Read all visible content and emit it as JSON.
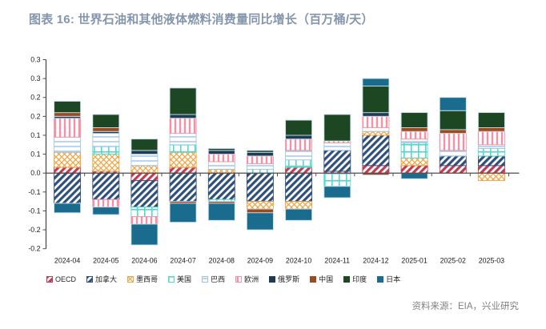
{
  "title": "图表 16: 世界石油和其他液体燃料消费量同比增长（百万桶/天）",
  "source": "资料来源：EIA，兴业研究",
  "chart_data": {
    "type": "bar",
    "stacked": true,
    "title": "图表 16: 世界石油和其他液体燃料消费量同比增长（百万桶/天）",
    "ylabel": "",
    "xlabel": "",
    "unit": "百万桶/天",
    "grid": false,
    "legend_position": "bottom",
    "ylim": [
      -0.2,
      0.3
    ],
    "ytick_step": 0.05,
    "ytick_labels": [
      "0.3",
      "0.3",
      "0.2",
      "0.2",
      "0.1",
      "0.1",
      "0.0",
      "-0.1",
      "-0.1",
      "-0.2",
      "-0.2"
    ],
    "categories": [
      "2024-04",
      "2024-05",
      "2024-06",
      "2024-07",
      "2024-08",
      "2024-09",
      "2024-10",
      "2024-11",
      "2024-12",
      "2025-01",
      "2025-02",
      "2025-03"
    ],
    "series": [
      {
        "name": "OECD",
        "pattern": "diagonal",
        "color": "#c03b50",
        "values": [
          0.015,
          0.005,
          -0.02,
          0.015,
          0,
          0,
          0.015,
          0.005,
          0.02,
          0.02,
          0.02,
          0.02
        ]
      },
      {
        "name": "加拿大",
        "pattern": "diagonal",
        "color": "#2f4f7d",
        "values": [
          -0.08,
          -0.07,
          -0.07,
          -0.075,
          -0.07,
          -0.075,
          -0.075,
          0.055,
          0.08,
          0,
          0.025,
          0.025
        ]
      },
      {
        "name": "墨西哥",
        "pattern": "crosshatch",
        "color": "#f0a23e",
        "values": [
          0.04,
          0.045,
          0.02,
          0.04,
          0.01,
          -0.02,
          -0.02,
          0,
          0.01,
          0.02,
          0,
          -0.02
        ]
      },
      {
        "name": "美国",
        "pattern": "grid",
        "color": "#52d9cd",
        "values": [
          0,
          0.02,
          -0.025,
          0.02,
          -0.005,
          0.01,
          0.02,
          -0.035,
          0,
          0.04,
          0,
          0.02
        ]
      },
      {
        "name": "巴西",
        "pattern": "hlines",
        "color": "#9dc5e8",
        "values": [
          0.04,
          0.035,
          0.03,
          0.03,
          0.02,
          0.015,
          0.025,
          0.02,
          0.01,
          0.01,
          0.015,
          0.01
        ]
      },
      {
        "name": "欧洲",
        "pattern": "vlines",
        "color": "#f591a5",
        "values": [
          0.05,
          -0.02,
          -0.02,
          0.04,
          0.02,
          0.02,
          0.03,
          0.005,
          0.03,
          0.02,
          0.045,
          0.035
        ]
      },
      {
        "name": "俄罗斯",
        "pattern": "solid",
        "color": "#1f3b54",
        "values": [
          0.005,
          0.005,
          0.01,
          0.01,
          0.01,
          0.01,
          0.01,
          0,
          0.01,
          0,
          0,
          0
        ]
      },
      {
        "name": "中国",
        "pattern": "solid",
        "color": "#9c4a1f",
        "values": [
          0.01,
          0.01,
          0,
          -0.005,
          -0.005,
          -0.01,
          0,
          0,
          -0.005,
          0.01,
          0.01,
          0.01
        ]
      },
      {
        "name": "印度",
        "pattern": "solid",
        "color": "#1d4723",
        "values": [
          0.03,
          0.035,
          0.03,
          0.07,
          0.005,
          0.005,
          0.04,
          0.07,
          0.07,
          0.04,
          0.05,
          0.04
        ]
      },
      {
        "name": "日本",
        "pattern": "solid",
        "color": "#1a6c8e",
        "values": [
          -0.025,
          -0.02,
          -0.055,
          -0.05,
          -0.045,
          -0.045,
          -0.03,
          -0.03,
          0.02,
          -0.015,
          0.035,
          0
        ]
      }
    ],
    "axis_color": "#4d4d4d",
    "tick_label_color": "#1a1a1a",
    "bar_outline_color": "#c9dcea"
  }
}
